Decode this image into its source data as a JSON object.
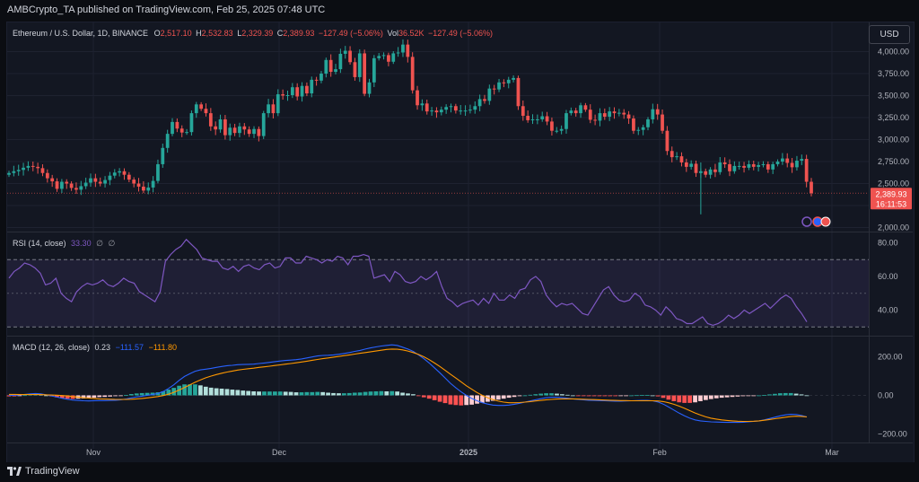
{
  "header": {
    "published": "AMBCrypto_TA published on TradingView.com, Feb 25, 2025 07:48 UTC"
  },
  "symbol": {
    "name": "Ethereum / U.S. Dollar, 1D, BINANCE",
    "o_label": "O",
    "o_value": "2,517.10",
    "h_label": "H",
    "h_value": "2,532.83",
    "l_label": "L",
    "l_value": "2,329.39",
    "c_label": "C",
    "c_value": "2,389.93",
    "change": "−127.49 (−5.06%)",
    "vol_label": "Vol",
    "vol_value": "36.52K",
    "vol_change": "−127.49 (−5.06%)"
  },
  "currency_button": "USD",
  "price_label": {
    "price": "2,389.93",
    "countdown": "16:11:53"
  },
  "rsi": {
    "title": "RSI (14, close)",
    "value": "33.30",
    "extra1": "∅",
    "extra2": "∅"
  },
  "macd": {
    "title": "MACD (12, 26, close)",
    "hist": "0.23",
    "macd": "−111.57",
    "signal": "−111.80"
  },
  "footer": {
    "brand": "TradingView"
  },
  "colors": {
    "up": "#26a69a",
    "down": "#ef5350",
    "macd": "#2962ff",
    "signal": "#ff9800",
    "rsi": "#7e57c2",
    "background": "#131722"
  },
  "chart_data": {
    "type": "candlestick",
    "title": "Ethereum / U.S. Dollar, 1D, BINANCE",
    "x_ticks": [
      "Nov",
      "Dec",
      "2025",
      "Feb",
      "Mar"
    ],
    "price_axis": {
      "ticks": [
        "4,000.00",
        "3,750.00",
        "3,500.00",
        "3,250.00",
        "3,000.00",
        "2,750.00",
        "2,500.00",
        "2,250.00",
        "2,000.00"
      ],
      "values": [
        4000,
        3750,
        3500,
        3250,
        3000,
        2750,
        2500,
        2250,
        2000
      ]
    },
    "candle_closes": [
      2620,
      2640,
      2655,
      2680,
      2700,
      2690,
      2675,
      2620,
      2560,
      2525,
      2440,
      2520,
      2500,
      2450,
      2430,
      2470,
      2510,
      2560,
      2520,
      2500,
      2540,
      2590,
      2625,
      2640,
      2600,
      2545,
      2500,
      2465,
      2420,
      2455,
      2530,
      2720,
      2905,
      3065,
      3200,
      3125,
      3080,
      3085,
      3300,
      3400,
      3350,
      3300,
      3150,
      3115,
      3230,
      3050,
      3135,
      3075,
      3150,
      3115,
      3065,
      3120,
      3040,
      3300,
      3400,
      3300,
      3515,
      3500,
      3505,
      3595,
      3490,
      3610,
      3525,
      3680,
      3670,
      3750,
      3905,
      3770,
      3800,
      3975,
      4010,
      3880,
      3710,
      3980,
      3520,
      3650,
      3925,
      3950,
      3960,
      3885,
      3980,
      3990,
      4080,
      3940,
      3560,
      3390,
      3410,
      3320,
      3330,
      3310,
      3340,
      3370,
      3380,
      3330,
      3330,
      3330,
      3340,
      3380,
      3460,
      3440,
      3580,
      3570,
      3650,
      3640,
      3680,
      3700,
      3380,
      3270,
      3220,
      3230,
      3230,
      3265,
      3205,
      3100,
      3100,
      3120,
      3300,
      3330,
      3300,
      3390,
      3340,
      3225,
      3215,
      3300,
      3260,
      3320,
      3300,
      3305,
      3285,
      3240,
      3100,
      3110,
      3140,
      3230,
      3345,
      3285,
      3100,
      2870,
      2800,
      2810,
      2740,
      2690,
      2725,
      2620,
      2640,
      2600,
      2660,
      2630,
      2740,
      2720,
      2640,
      2700,
      2700,
      2680,
      2720,
      2690,
      2710,
      2720,
      2660,
      2720,
      2750,
      2785,
      2735,
      2685,
      2760,
      2780,
      2520,
      2390
    ],
    "last_price": 2389.93,
    "rsi": {
      "axis_ticks": [
        "80.00",
        "60.00",
        "40.00"
      ],
      "axis_values": [
        80,
        60,
        40
      ],
      "band": [
        70,
        30
      ],
      "mid": 50,
      "series": [
        59,
        63,
        65,
        68,
        67,
        65,
        62,
        55,
        56,
        59,
        50,
        47,
        45,
        51,
        54,
        56,
        55,
        56,
        58,
        55,
        54,
        56,
        59,
        57,
        56,
        51,
        49,
        47,
        45,
        51,
        69,
        73,
        76,
        78,
        82,
        79,
        76,
        71,
        70,
        69,
        69,
        65,
        64,
        66,
        63,
        66,
        67,
        65,
        64,
        67,
        68,
        65,
        66,
        71,
        71,
        68,
        68,
        72,
        71,
        70,
        68,
        70,
        69,
        72,
        71,
        67,
        72,
        72,
        73,
        72,
        59,
        60,
        61,
        57,
        63,
        61,
        57,
        56,
        57,
        60,
        58,
        60,
        63,
        54,
        47,
        45,
        42,
        44,
        45,
        46,
        43,
        47,
        44,
        50,
        46,
        46,
        49,
        47,
        52,
        53,
        58,
        60,
        57,
        49,
        45,
        42,
        44,
        43,
        44,
        41,
        38,
        37,
        42,
        47,
        52,
        54,
        49,
        46,
        45,
        46,
        50,
        48,
        43,
        42,
        40,
        37,
        42,
        39,
        35,
        34,
        32,
        32,
        34,
        36,
        32,
        31,
        32,
        34,
        37,
        35,
        37,
        40,
        38,
        40,
        42,
        44,
        41,
        44,
        47,
        49,
        47,
        42,
        38,
        33
      ]
    },
    "macd": {
      "axis_ticks": [
        "200.00",
        "0.00",
        "−200.00"
      ],
      "axis_values": [
        200,
        0,
        -200
      ],
      "macd_line": [
        0,
        0,
        2,
        5,
        8,
        10,
        8,
        3,
        -3,
        -9,
        -15,
        -20,
        -24,
        -26,
        -28,
        -29,
        -28,
        -27,
        -27,
        -26,
        -25,
        -23,
        -19,
        -13,
        -8,
        -4,
        0,
        4,
        10,
        20,
        36,
        55,
        78,
        98,
        112,
        125,
        132,
        136,
        140,
        145,
        150,
        154,
        156,
        159,
        160,
        161,
        162,
        165,
        168,
        171,
        175,
        178,
        181,
        183,
        185,
        189,
        194,
        199,
        204,
        207,
        208,
        210,
        213,
        217,
        222,
        228,
        233,
        240,
        246,
        251,
        256,
        259,
        262,
        259,
        250,
        240,
        228,
        210,
        190,
        168,
        143,
        117,
        90,
        63,
        40,
        18,
        0,
        -16,
        -28,
        -38,
        -45,
        -50,
        -52,
        -52,
        -50,
        -46,
        -41,
        -35,
        -29,
        -23,
        -17,
        -12,
        -10,
        -10,
        -12,
        -15,
        -18,
        -21,
        -23,
        -25,
        -26,
        -27,
        -28,
        -29,
        -30,
        -30,
        -29,
        -28,
        -27,
        -26,
        -26,
        -28,
        -34,
        -45,
        -60,
        -76,
        -92,
        -106,
        -118,
        -127,
        -132,
        -135,
        -137,
        -138,
        -139,
        -140,
        -140,
        -140,
        -139,
        -137,
        -135,
        -132,
        -127,
        -120,
        -113,
        -106,
        -101,
        -98,
        -99,
        -104,
        -111.57
      ],
      "signal_line": [
        5,
        5,
        4,
        4,
        4,
        4,
        4,
        3,
        2,
        1,
        -1,
        -3,
        -6,
        -9,
        -12,
        -14,
        -16,
        -18,
        -19,
        -20,
        -21,
        -21,
        -21,
        -20,
        -18,
        -16,
        -13,
        -10,
        -6,
        -1,
        6,
        16,
        28,
        41,
        55,
        68,
        80,
        91,
        100,
        108,
        115,
        121,
        126,
        131,
        135,
        138,
        141,
        145,
        148,
        151,
        155,
        158,
        162,
        165,
        169,
        173,
        177,
        182,
        186,
        190,
        194,
        198,
        202,
        206,
        210,
        214,
        218,
        222,
        226,
        230,
        234,
        238,
        240,
        239,
        236,
        230,
        222,
        212,
        200,
        185,
        168,
        150,
        130,
        110,
        90,
        70,
        50,
        32,
        15,
        0,
        -12,
        -22,
        -30,
        -35,
        -38,
        -38,
        -37,
        -35,
        -32,
        -29,
        -26,
        -23,
        -21,
        -19,
        -18,
        -18,
        -18,
        -19,
        -20,
        -21,
        -22,
        -23,
        -24,
        -25,
        -26,
        -27,
        -27,
        -28,
        -28,
        -28,
        -28,
        -28,
        -29,
        -32,
        -38,
        -46,
        -56,
        -67,
        -79,
        -91,
        -102,
        -111,
        -118,
        -123,
        -127,
        -130,
        -132,
        -134,
        -135,
        -135,
        -134,
        -132,
        -129,
        -125,
        -121,
        -117,
        -113,
        -110,
        -108,
        -109,
        -111.8
      ]
    }
  }
}
